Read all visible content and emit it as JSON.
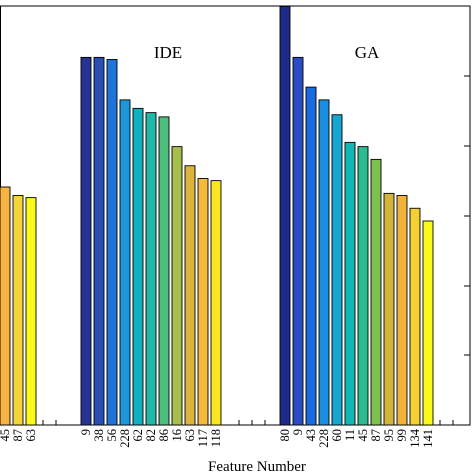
{
  "chart_data": {
    "type": "bar",
    "xlabel": "Feature Number",
    "ylabel": "",
    "ylim": [
      0,
      1.0
    ],
    "panels": [
      {
        "name": "",
        "categories": [
          "45",
          "87",
          "63"
        ],
        "values": [
          0.56,
          0.54,
          0.535
        ],
        "colors": [
          "#f5b443",
          "#f3d43b",
          "#f9f91a"
        ]
      },
      {
        "name": "IDE",
        "categories": [
          "9",
          "38",
          "56",
          "228",
          "62",
          "82",
          "86",
          "16",
          "63",
          "117",
          "118"
        ],
        "values": [
          0.865,
          0.865,
          0.86,
          0.765,
          0.745,
          0.735,
          0.725,
          0.655,
          0.61,
          0.58,
          0.575
        ],
        "colors": [
          "#253494",
          "#2850b4",
          "#1e74d8",
          "#1e97d8",
          "#12b1c0",
          "#20b8a6",
          "#4cbf7c",
          "#a6be4e",
          "#dcb43c",
          "#f5b93b",
          "#f9e621"
        ]
      },
      {
        "name": "GA",
        "categories": [
          "80",
          "9",
          "43",
          "228",
          "60",
          "11",
          "45",
          "87",
          "95",
          "99",
          "134",
          "141"
        ],
        "values": [
          0.985,
          0.865,
          0.795,
          0.765,
          0.73,
          0.665,
          0.655,
          0.625,
          0.545,
          0.54,
          0.51,
          0.48
        ],
        "colors": [
          "#1d2c8a",
          "#2a4cc4",
          "#1a6be0",
          "#1a8ee0",
          "#16a6d0",
          "#12b8b4",
          "#2abd90",
          "#7cc050",
          "#d2b43c",
          "#f0b23a",
          "#f4d032",
          "#f9f91a"
        ]
      }
    ]
  }
}
